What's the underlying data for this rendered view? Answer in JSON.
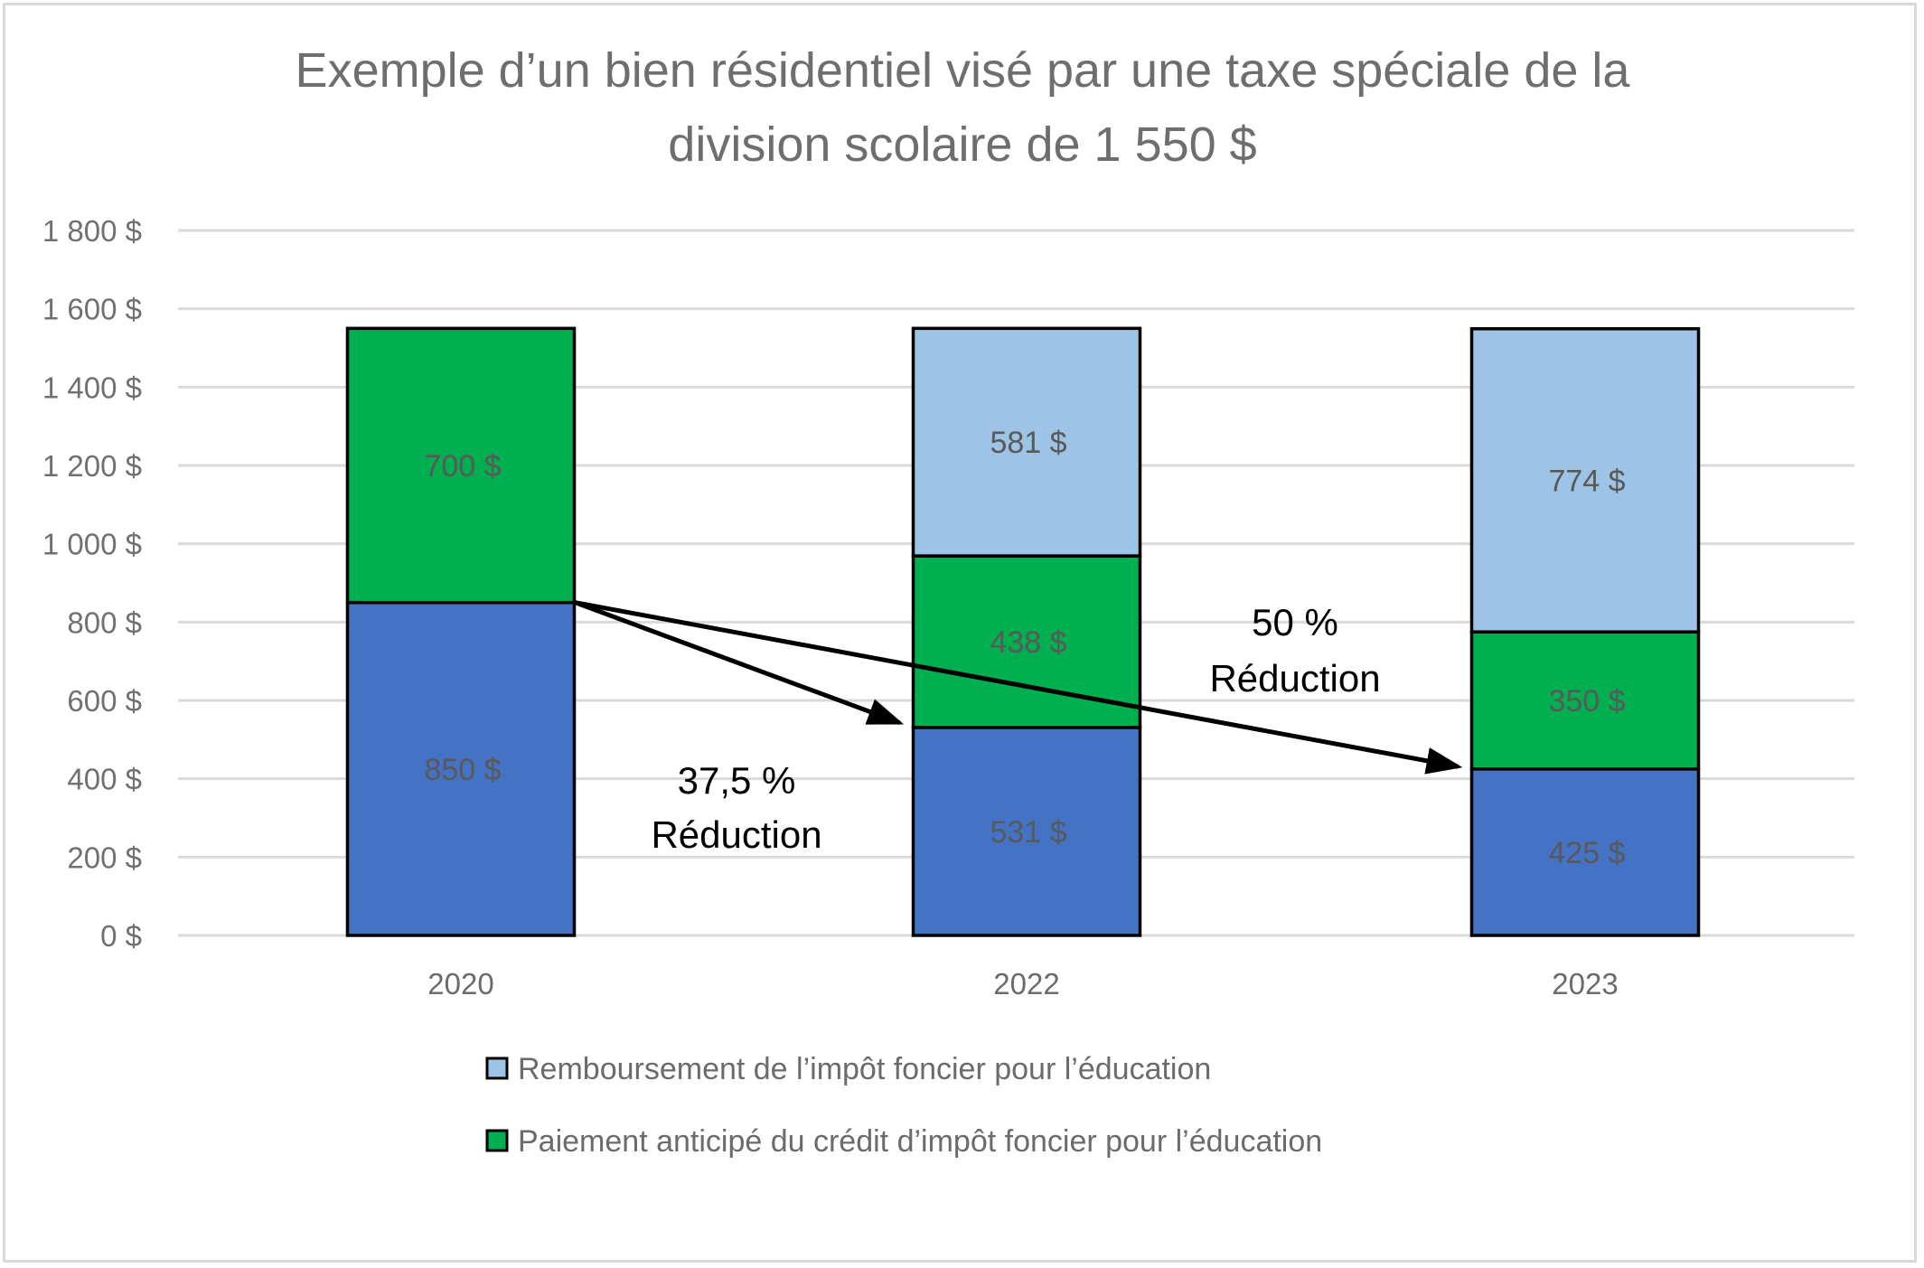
{
  "chart_data": {
    "type": "bar",
    "stacked": true,
    "title": [
      "Exemple d’un bien résidentiel visé par une taxe spéciale de la",
      "division scolaire de 1 550 $"
    ],
    "xlabel": "",
    "ylabel": "",
    "categories": [
      "2020",
      "2022",
      "2023"
    ],
    "ylim": [
      0,
      1800
    ],
    "yticks": [
      0,
      200,
      400,
      600,
      800,
      1000,
      1200,
      1400,
      1600,
      1800
    ],
    "ytick_labels": [
      "0 $",
      "200 $",
      "400 $",
      "600 $",
      "800 $",
      "1 000 $",
      "1 200 $",
      "1 400 $",
      "1 600 $",
      "1 800 $"
    ],
    "grid": true,
    "series": [
      {
        "name": "",
        "color": "#4472C4",
        "values": [
          850,
          531,
          425
        ],
        "labels": [
          "850 $",
          "531 $",
          "425 $"
        ],
        "in_legend": false
      },
      {
        "name": "Paiement anticipé du crédit d’impôt foncier pour l’éducation",
        "color": "#00B050",
        "values": [
          700,
          438,
          350
        ],
        "labels": [
          "700 $",
          "438 $",
          "350 $"
        ],
        "in_legend": true
      },
      {
        "name": "Remboursement de l’impôt foncier pour l’éducation",
        "color": "#9DC3E6",
        "values": [
          0,
          581,
          774
        ],
        "labels": [
          "",
          "581 $",
          "774 $"
        ],
        "in_legend": true
      }
    ],
    "legend": {
      "placement": "bottom",
      "entries": [
        {
          "label": "Remboursement de l’impôt foncier pour l’éducation",
          "color": "#9DC3E6"
        },
        {
          "label": "Paiement anticipé du crédit d’impôt foncier pour l’éducation",
          "color": "#00B050"
        }
      ]
    },
    "annotations": [
      {
        "from": {
          "category": "2020",
          "value": 850
        },
        "to": {
          "category": "2022",
          "value": 531
        },
        "text": [
          "37,5 %",
          "Réduction"
        ]
      },
      {
        "from": {
          "category": "2020",
          "value": 850
        },
        "to": {
          "category": "2023",
          "value": 425
        },
        "text": [
          "50 %",
          "Réduction"
        ]
      }
    ]
  }
}
